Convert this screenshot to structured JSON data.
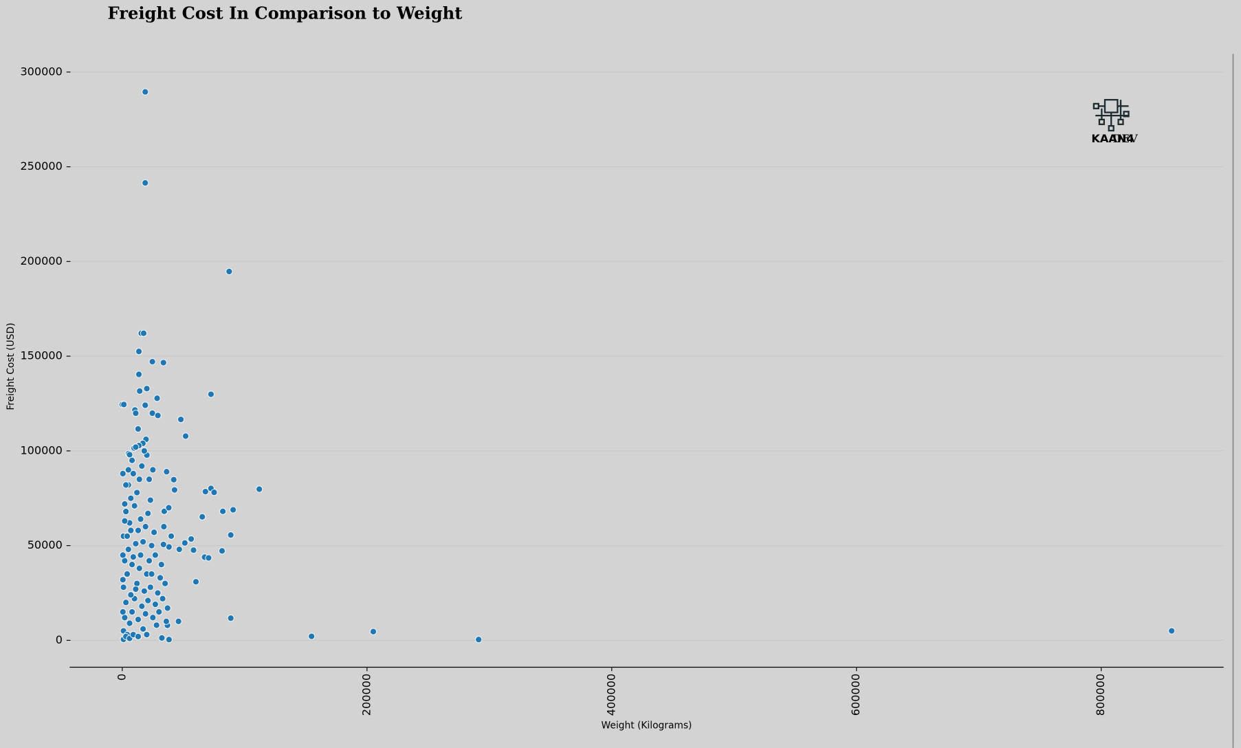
{
  "chart_data": {
    "type": "scatter",
    "title": "Freight Cost In Comparison to Weight",
    "x_label": "Weight (Kilograms)",
    "y_label": "Freight Cost (USD)",
    "color": "#1f77b4",
    "grid": true,
    "xlim": [
      -43000,
      900000
    ],
    "ylim": [
      -14200,
      309600
    ],
    "xticks": [
      0,
      200000,
      400000,
      600000,
      800000
    ],
    "yticks": [
      0,
      50000,
      100000,
      150000,
      200000,
      250000,
      300000
    ],
    "x": [
      18770,
      18770,
      87370,
      15530,
      17480,
      13590,
      24590,
      33650,
      13590,
      14240,
      20060,
      72490,
      0,
      1300,
      18770,
      28480,
      10360,
      11000,
      24590,
      29120,
      47890,
      51780,
      12940,
      19410,
      16830,
      5180,
      9700,
      13590,
      20060,
      72490,
      75080,
      67960,
      111970,
      90610,
      82200,
      65370,
      88670,
      56310,
      51130,
      81550,
      67310,
      70540,
      58250,
      46600,
      38190,
      33650,
      34300,
      42070,
      36250,
      42720,
      60190,
      88670,
      45950,
      36890,
      32360,
      38190,
      154680,
      205160,
      291240,
      857560,
      1000,
      2000,
      3000,
      1000,
      4000,
      2000,
      5000,
      1000,
      6000,
      3000,
      7000,
      5000,
      9000,
      8000,
      11000,
      4000,
      6000,
      8000,
      10000,
      12000,
      14000,
      9000,
      11000,
      13000,
      15000,
      10000,
      12000,
      14000,
      16000,
      18000,
      17000,
      19000,
      21000,
      23000,
      20000,
      22000,
      24000,
      26000,
      16000,
      18000,
      25000,
      27000,
      29000,
      31000,
      28000,
      30000,
      33000,
      35000,
      37000,
      36000,
      2000,
      3000,
      5000,
      500,
      7000,
      8000,
      500,
      500,
      500,
      1000,
      3000,
      6000,
      9000,
      13000,
      15000,
      17000,
      19000,
      21000,
      23000,
      11000,
      13000,
      7000,
      4000,
      2000,
      20000,
      24000,
      27000,
      34000,
      38000,
      40000,
      32000,
      22000,
      25000,
      6000
    ],
    "values": [
      289530,
      241490,
      194700,
      162100,
      162100,
      152500,
      147100,
      146600,
      140400,
      131600,
      132900,
      129900,
      124500,
      124500,
      124100,
      127800,
      121600,
      119900,
      119900,
      118700,
      116600,
      107800,
      111600,
      106100,
      104000,
      98600,
      101500,
      102800,
      97800,
      80200,
      78100,
      78500,
      79800,
      68900,
      68100,
      65200,
      55600,
      53500,
      51400,
      47200,
      43900,
      43500,
      47600,
      48000,
      49300,
      50600,
      68100,
      84800,
      89000,
      79400,
      30900,
      11700,
      10000,
      7900,
      1250,
      400,
      2100,
      4600,
      400,
      5000,
      5000,
      12000,
      20000,
      28000,
      35000,
      42000,
      48000,
      55000,
      62000,
      68000,
      75000,
      82000,
      88000,
      95000,
      102000,
      3000,
      9000,
      15000,
      22000,
      30000,
      38000,
      44000,
      51000,
      58000,
      64000,
      71000,
      78000,
      85000,
      92000,
      100000,
      6000,
      14000,
      21000,
      28000,
      35000,
      42000,
      50000,
      57000,
      18000,
      26000,
      12000,
      19000,
      25000,
      33000,
      8000,
      15000,
      22000,
      30000,
      17000,
      10000,
      72000,
      82000,
      90000,
      88000,
      58000,
      40000,
      15000,
      32000,
      45000,
      500,
      2000,
      1000,
      3000,
      2000,
      45000,
      52000,
      60000,
      67000,
      74000,
      27000,
      11000,
      24000,
      55000,
      63000,
      3000,
      35000,
      45000,
      60000,
      70000,
      55000,
      40000,
      85000,
      90000,
      98000
    ]
  },
  "logo": {
    "brand": "KAAN4",
    "suffix": "DEV"
  }
}
